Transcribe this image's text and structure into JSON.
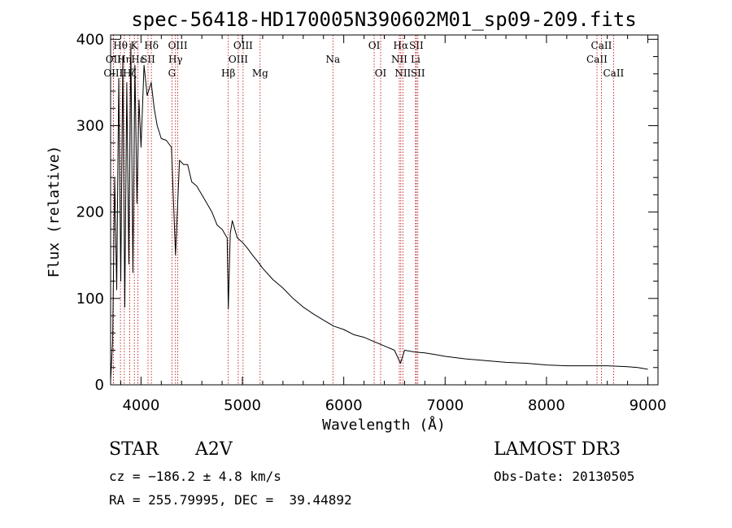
{
  "chart_data": {
    "type": "line",
    "title": "spec-56418-HD170005N390602M01_sp09-209.fits",
    "xlabel": "Wavelength (Å)",
    "ylabel": "Flux (relative)",
    "xlim": [
      3700,
      9100
    ],
    "ylim": [
      0,
      405
    ],
    "xticks": [
      4000,
      5000,
      6000,
      7000,
      8000,
      9000
    ],
    "yticks": [
      0,
      100,
      200,
      300,
      400
    ],
    "series": [
      {
        "name": "spectrum",
        "x": [
          3700,
          3720,
          3740,
          3760,
          3780,
          3800,
          3820,
          3840,
          3860,
          3880,
          3900,
          3920,
          3940,
          3960,
          3980,
          4000,
          4030,
          4060,
          4100,
          4130,
          4160,
          4200,
          4250,
          4300,
          4340,
          4380,
          4420,
          4460,
          4500,
          4550,
          4600,
          4650,
          4700,
          4750,
          4800,
          4850,
          4861,
          4880,
          4900,
          4950,
          5000,
          5050,
          5100,
          5150,
          5200,
          5300,
          5400,
          5500,
          5600,
          5700,
          5800,
          5900,
          6000,
          6100,
          6200,
          6300,
          6400,
          6500,
          6560,
          6600,
          6700,
          6800,
          6900,
          7000,
          7200,
          7400,
          7600,
          7800,
          8000,
          8200,
          8400,
          8600,
          8800,
          8900,
          9000
        ],
        "values": [
          5,
          50,
          240,
          110,
          355,
          120,
          380,
          90,
          350,
          140,
          395,
          130,
          370,
          210,
          330,
          275,
          370,
          335,
          350,
          320,
          300,
          285,
          283,
          275,
          150,
          260,
          255,
          255,
          235,
          230,
          220,
          210,
          200,
          185,
          180,
          170,
          88,
          175,
          190,
          170,
          165,
          158,
          150,
          143,
          135,
          122,
          112,
          100,
          90,
          82,
          75,
          68,
          64,
          58,
          55,
          50,
          45,
          40,
          25,
          40,
          38,
          37,
          35,
          33,
          30,
          28,
          26,
          25,
          23,
          22,
          22,
          22,
          21,
          20,
          18
        ]
      }
    ],
    "lines": [
      {
        "name": "Hθ",
        "x": 3797,
        "row": 0
      },
      {
        "name": "OII",
        "x": 3727,
        "row": 1
      },
      {
        "name": "OIII",
        "x": 3727,
        "row": 2
      },
      {
        "name": "Hη",
        "x": 3835,
        "row": 1
      },
      {
        "name": "Hζ",
        "x": 3889,
        "row": 2
      },
      {
        "name": "K",
        "x": 3934,
        "row": 0
      },
      {
        "name": "Hε",
        "x": 3970,
        "row": 1
      },
      {
        "name": "SII",
        "x": 4069,
        "row": 1
      },
      {
        "name": "Hδ",
        "x": 4102,
        "row": 0
      },
      {
        "name": "OIII",
        "x": 4363,
        "row": 0
      },
      {
        "name": "Hγ",
        "x": 4340,
        "row": 1
      },
      {
        "name": "G",
        "x": 4305,
        "row": 2
      },
      {
        "name": "Hβ",
        "x": 4861,
        "row": 2
      },
      {
        "name": "OIII",
        "x": 4959,
        "row": 1
      },
      {
        "name": "OIII",
        "x": 5007,
        "row": 0
      },
      {
        "name": "Mg",
        "x": 5175,
        "row": 2
      },
      {
        "name": "Na",
        "x": 5893,
        "row": 1
      },
      {
        "name": "OI",
        "x": 6300,
        "row": 0
      },
      {
        "name": "OI",
        "x": 6364,
        "row": 2
      },
      {
        "name": "NII",
        "x": 6548,
        "row": 1
      },
      {
        "name": "Hα",
        "x": 6563,
        "row": 0
      },
      {
        "name": "NII",
        "x": 6583,
        "row": 2
      },
      {
        "name": "SII",
        "x": 6716,
        "row": 0
      },
      {
        "name": "Li",
        "x": 6708,
        "row": 1
      },
      {
        "name": "SII",
        "x": 6731,
        "row": 2
      },
      {
        "name": "CaII",
        "x": 8498,
        "row": 1
      },
      {
        "name": "CaII",
        "x": 8542,
        "row": 0
      },
      {
        "name": "CaII",
        "x": 8662,
        "row": 2
      }
    ],
    "colors": {
      "spectrum": "#000000",
      "lines": "#b40000",
      "axes": "#000000"
    }
  },
  "info": {
    "class": "STAR",
    "subclass": "A2V",
    "cz": "cz = −186.2 ± 4.8 km/s",
    "radec": "RA = 255.79995, DEC =  39.44892",
    "survey": "LAMOST DR3",
    "obsdate": "Obs-Date: 20130505"
  }
}
